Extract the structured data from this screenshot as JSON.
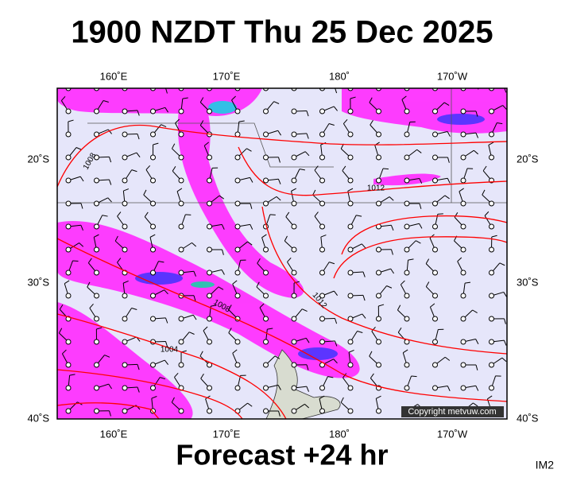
{
  "title": "1900 NZDT Thu 25 Dec 2025",
  "subtitle": "Forecast +24 hr",
  "code": "IM2",
  "copyright": "Copyright metvuw.com",
  "map": {
    "lon_labels": [
      "160˚E",
      "170˚E",
      "180˚",
      "170˚W"
    ],
    "lat_labels": [
      "20˚S",
      "30˚S",
      "40˚S"
    ],
    "isobar_labels": [
      "1008",
      "1012",
      "1012",
      "1008",
      "1004"
    ]
  }
}
